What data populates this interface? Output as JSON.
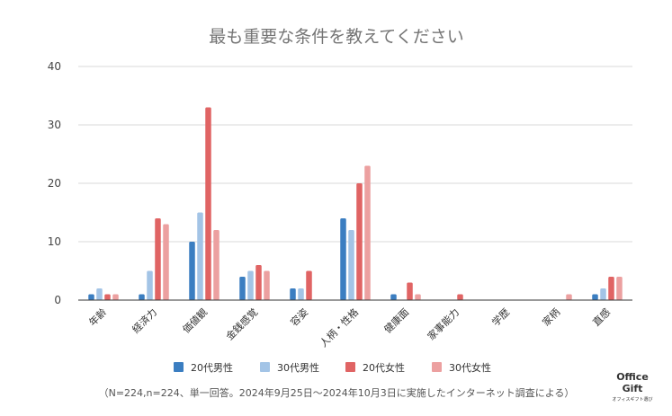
{
  "chart_data": {
    "type": "bar",
    "title": "最も重要な条件を教えてください",
    "categories": [
      "年齢",
      "経済力",
      "価値観",
      "金銭感覚",
      "容姿",
      "人柄・性格",
      "健康面",
      "家事能力",
      "学歴",
      "家柄",
      "直感"
    ],
    "series": [
      {
        "name": "20代男性",
        "color": "#3b7ec1",
        "values": [
          1,
          1,
          10,
          4,
          2,
          14,
          1,
          0,
          0,
          0,
          1
        ]
      },
      {
        "name": "30代男性",
        "color": "#a3c4e6",
        "values": [
          2,
          5,
          15,
          5,
          2,
          12,
          0,
          0,
          0,
          0,
          2
        ]
      },
      {
        "name": "20代女性",
        "color": "#e06464",
        "values": [
          1,
          14,
          33,
          6,
          5,
          20,
          3,
          1,
          0,
          0,
          4
        ]
      },
      {
        "name": "30代女性",
        "color": "#eca0a0",
        "values": [
          1,
          13,
          12,
          5,
          0,
          23,
          1,
          0,
          0,
          1,
          4
        ]
      }
    ],
    "ylim": [
      0,
      40
    ],
    "yticks": [
      0,
      10,
      20,
      30,
      40
    ],
    "grid": true,
    "legend_position": "bottom",
    "xlabel": "",
    "ylabel": ""
  },
  "footnote": "（N=224,n=224、単一回答。2024年9月25日～2024年10月3日に実施したインターネット調査による）",
  "logo": {
    "line1": "Office",
    "line2": "Gift",
    "tagline": "オフィスギフト選び"
  }
}
